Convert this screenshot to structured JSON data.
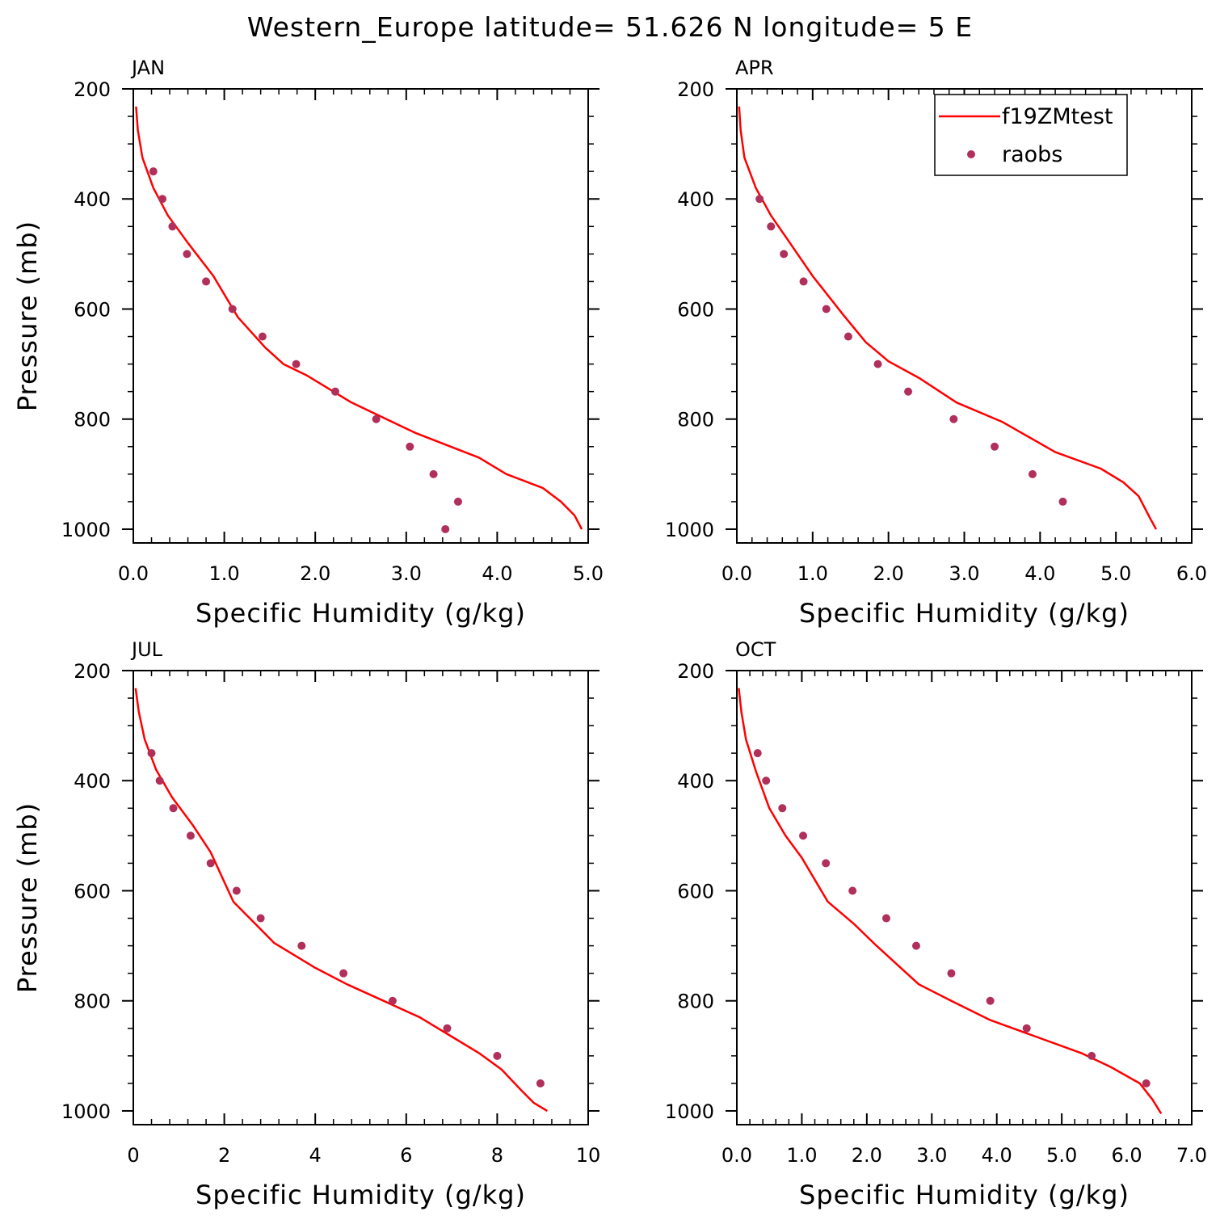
{
  "title": "Western_Europe  latitude= 51.626 N longitude= 5 E",
  "legend": {
    "model_label": "f19ZMtest",
    "obs_label": "raobs"
  },
  "colors": {
    "model_line": "#ff0000",
    "obs_marker": "#b0305a",
    "axes": "#000000"
  },
  "chart_data": [
    {
      "type": "line",
      "title": "JAN",
      "xlabel": "Specific Humidity (g/kg)",
      "ylabel": "Pressure (mb)",
      "xlim": [
        0,
        5
      ],
      "ylim": [
        1025,
        200
      ],
      "y_inverted": true,
      "xticks": [
        0,
        1,
        2,
        3,
        4,
        5
      ],
      "xtick_labels": [
        "0.0",
        "1.0",
        "2.0",
        "3.0",
        "4.0",
        "5.0"
      ],
      "yticks": [
        200,
        400,
        600,
        800,
        1000
      ],
      "ytick_labels": [
        "200",
        "400",
        "600",
        "800",
        "1000"
      ],
      "series": [
        {
          "name": "f19ZMtest",
          "kind": "line",
          "x": [
            0.03,
            0.05,
            0.1,
            0.22,
            0.38,
            0.6,
            0.88,
            1.15,
            1.45,
            1.65,
            1.9,
            2.4,
            3.1,
            3.8,
            4.1,
            4.5,
            4.7,
            4.85,
            4.93
          ],
          "y": [
            232,
            275,
            325,
            380,
            430,
            480,
            540,
            615,
            670,
            700,
            720,
            770,
            825,
            870,
            900,
            925,
            950,
            975,
            1000
          ]
        },
        {
          "name": "raobs",
          "kind": "scatter",
          "x": [
            0.22,
            0.32,
            0.43,
            0.59,
            0.8,
            1.09,
            1.42,
            1.79,
            2.22,
            2.67,
            3.04,
            3.3,
            3.57,
            3.43
          ],
          "y": [
            350,
            400,
            450,
            500,
            550,
            600,
            650,
            700,
            750,
            800,
            850,
            900,
            950,
            1000
          ]
        }
      ]
    },
    {
      "type": "line",
      "title": "APR",
      "xlabel": "Specific Humidity (g/kg)",
      "ylabel": "",
      "xlim": [
        0,
        6
      ],
      "ylim": [
        1025,
        200
      ],
      "y_inverted": true,
      "xticks": [
        0,
        1,
        2,
        3,
        4,
        5,
        6
      ],
      "xtick_labels": [
        "0.0",
        "1.0",
        "2.0",
        "3.0",
        "4.0",
        "5.0",
        "6.0"
      ],
      "yticks": [
        200,
        400,
        600,
        800,
        1000
      ],
      "ytick_labels": [
        "200",
        "400",
        "600",
        "800",
        "1000"
      ],
      "series": [
        {
          "name": "f19ZMtest",
          "kind": "line",
          "x": [
            0.03,
            0.05,
            0.1,
            0.25,
            0.45,
            0.7,
            1.0,
            1.4,
            1.7,
            2.0,
            2.4,
            2.9,
            3.5,
            4.2,
            4.8,
            5.1,
            5.3,
            5.45,
            5.53
          ],
          "y": [
            232,
            275,
            325,
            380,
            430,
            480,
            540,
            610,
            660,
            695,
            725,
            770,
            805,
            860,
            890,
            915,
            940,
            980,
            1000
          ]
        },
        {
          "name": "raobs",
          "kind": "scatter",
          "x": [
            0.3,
            0.45,
            0.62,
            0.88,
            1.18,
            1.47,
            1.86,
            2.26,
            2.86,
            3.4,
            3.9,
            4.3
          ],
          "y": [
            400,
            450,
            500,
            550,
            600,
            650,
            700,
            750,
            800,
            850,
            900,
            950
          ]
        }
      ]
    },
    {
      "type": "line",
      "title": "JUL",
      "xlabel": "Specific Humidity (g/kg)",
      "ylabel": "Pressure (mb)",
      "xlim": [
        0,
        10
      ],
      "ylim": [
        1025,
        200
      ],
      "y_inverted": true,
      "xticks": [
        0,
        2,
        4,
        6,
        8,
        10
      ],
      "xtick_labels": [
        "0",
        "2",
        "4",
        "6",
        "8",
        "10"
      ],
      "yticks": [
        200,
        400,
        600,
        800,
        1000
      ],
      "ytick_labels": [
        "200",
        "400",
        "600",
        "800",
        "1000"
      ],
      "series": [
        {
          "name": "f19ZMtest",
          "kind": "line",
          "x": [
            0.05,
            0.12,
            0.25,
            0.5,
            0.85,
            1.3,
            1.7,
            2.2,
            3.1,
            4.0,
            4.7,
            5.5,
            6.3,
            7.0,
            7.6,
            8.1,
            8.5,
            8.8,
            9.1
          ],
          "y": [
            232,
            275,
            325,
            380,
            430,
            480,
            530,
            620,
            695,
            740,
            770,
            800,
            830,
            865,
            895,
            925,
            960,
            985,
            1000
          ]
        },
        {
          "name": "raobs",
          "kind": "scatter",
          "x": [
            0.4,
            0.58,
            0.88,
            1.26,
            1.7,
            2.27,
            2.8,
            3.7,
            4.62,
            5.7,
            6.9,
            8.0,
            8.95
          ],
          "y": [
            350,
            400,
            450,
            500,
            550,
            600,
            650,
            700,
            750,
            800,
            850,
            900,
            950
          ]
        }
      ]
    },
    {
      "type": "line",
      "title": "OCT",
      "xlabel": "Specific Humidity (g/kg)",
      "ylabel": "",
      "xlim": [
        0,
        7
      ],
      "ylim": [
        1025,
        200
      ],
      "y_inverted": true,
      "xticks": [
        0,
        1,
        2,
        3,
        4,
        5,
        6,
        7
      ],
      "xtick_labels": [
        "0.0",
        "1.0",
        "2.0",
        "3.0",
        "4.0",
        "5.0",
        "6.0",
        "7.0"
      ],
      "yticks": [
        200,
        400,
        600,
        800,
        1000
      ],
      "ytick_labels": [
        "200",
        "400",
        "600",
        "800",
        "1000"
      ],
      "series": [
        {
          "name": "f19ZMtest",
          "kind": "line",
          "x": [
            0.03,
            0.07,
            0.14,
            0.3,
            0.5,
            0.75,
            1.0,
            1.4,
            1.8,
            2.15,
            2.8,
            3.3,
            3.9,
            4.6,
            5.3,
            5.75,
            6.2,
            6.4,
            6.53
          ],
          "y": [
            232,
            275,
            325,
            385,
            450,
            500,
            540,
            620,
            660,
            700,
            770,
            800,
            835,
            865,
            895,
            920,
            950,
            980,
            1005
          ]
        },
        {
          "name": "raobs",
          "kind": "scatter",
          "x": [
            0.32,
            0.45,
            0.7,
            1.02,
            1.37,
            1.78,
            2.3,
            2.76,
            3.3,
            3.9,
            4.46,
            5.46,
            6.3
          ],
          "y": [
            350,
            400,
            450,
            500,
            550,
            600,
            650,
            700,
            750,
            800,
            850,
            900,
            950
          ]
        }
      ]
    }
  ]
}
